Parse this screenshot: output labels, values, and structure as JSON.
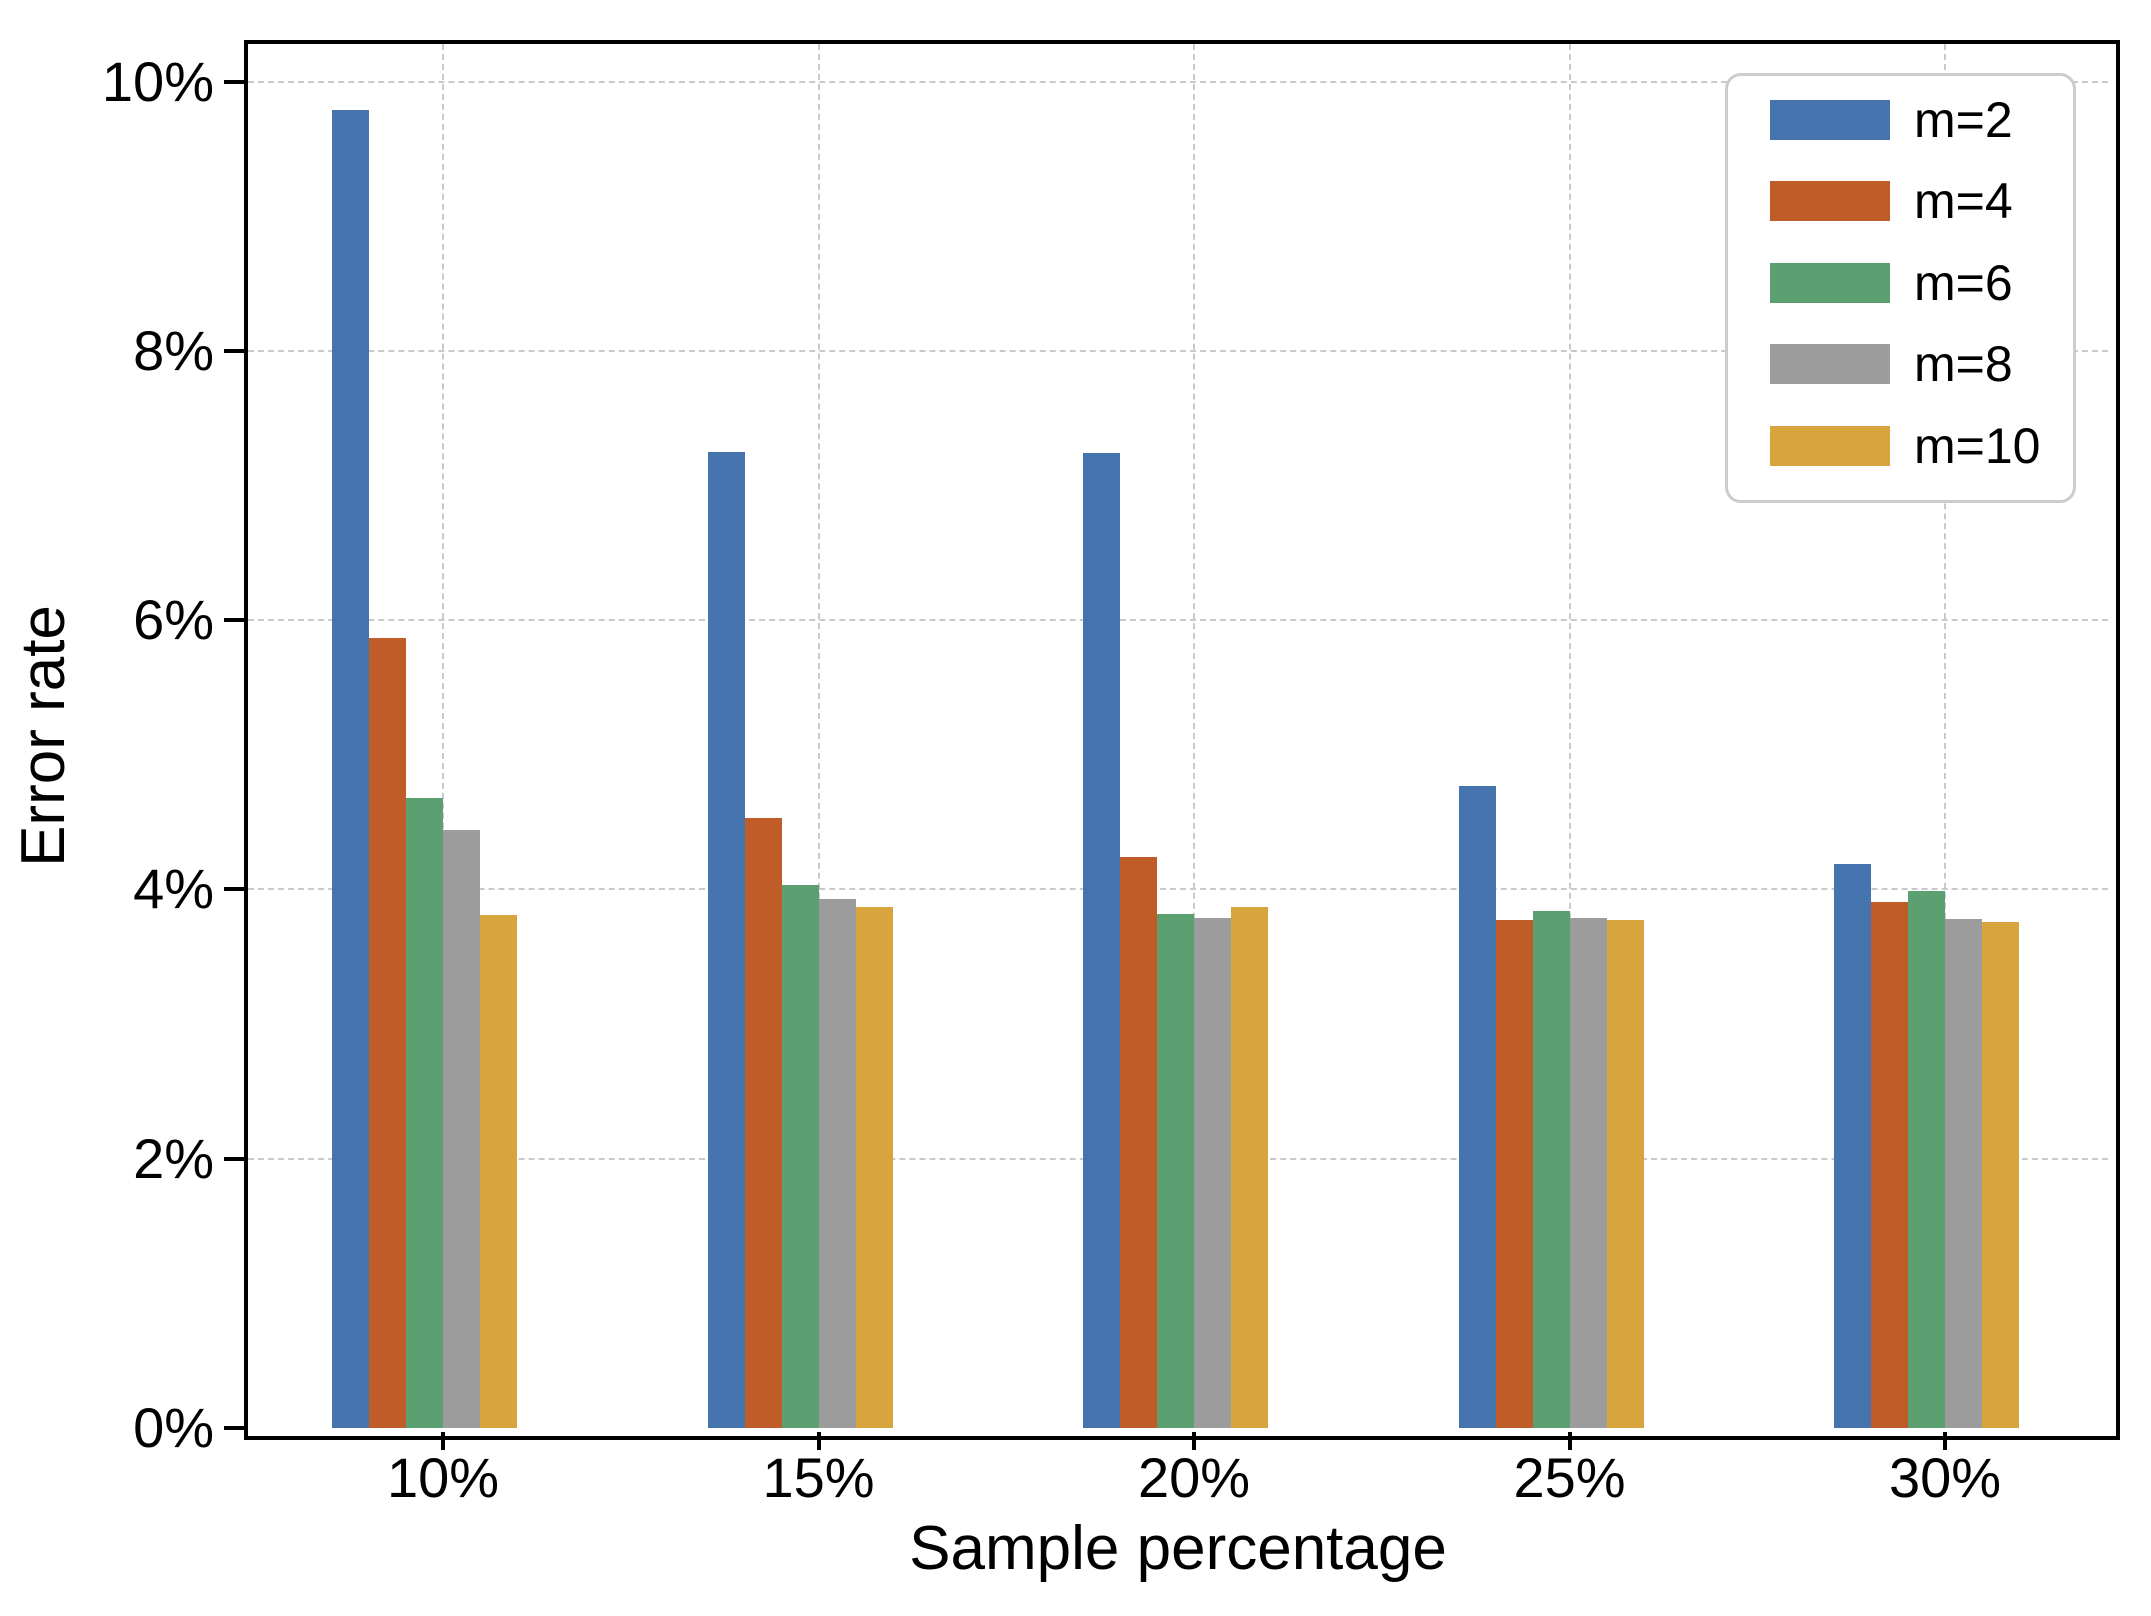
{
  "chart_data": {
    "type": "bar",
    "title": "",
    "xlabel": "Sample percentage",
    "ylabel": "Error rate",
    "categories": [
      "10%",
      "15%",
      "20%",
      "25%",
      "30%"
    ],
    "series": [
      {
        "name": "m=2",
        "color": "#4573AE",
        "values": [
          9.79,
          7.25,
          7.24,
          4.77,
          4.19
        ]
      },
      {
        "name": "m=4",
        "color": "#C05C28",
        "values": [
          5.87,
          4.53,
          4.24,
          3.77,
          3.91
        ]
      },
      {
        "name": "m=6",
        "color": "#5C9F70",
        "values": [
          4.68,
          4.03,
          3.82,
          3.84,
          3.99
        ]
      },
      {
        "name": "m=8",
        "color": "#9C9C9C",
        "values": [
          4.44,
          3.93,
          3.79,
          3.79,
          3.78
        ]
      },
      {
        "name": "m=10",
        "color": "#D7A43E",
        "values": [
          3.81,
          3.87,
          3.87,
          3.77,
          3.76
        ]
      }
    ],
    "y_tick_labels": [
      "0%",
      "2%",
      "4%",
      "6%",
      "8%",
      "10%"
    ],
    "y_tick_values": [
      0,
      2,
      4,
      6,
      8,
      10
    ],
    "ylim": [
      0,
      10.28
    ],
    "grid": true,
    "legend_position": "upper right",
    "frame_color": "#000000",
    "gridline_color": "#c9c9c9"
  }
}
